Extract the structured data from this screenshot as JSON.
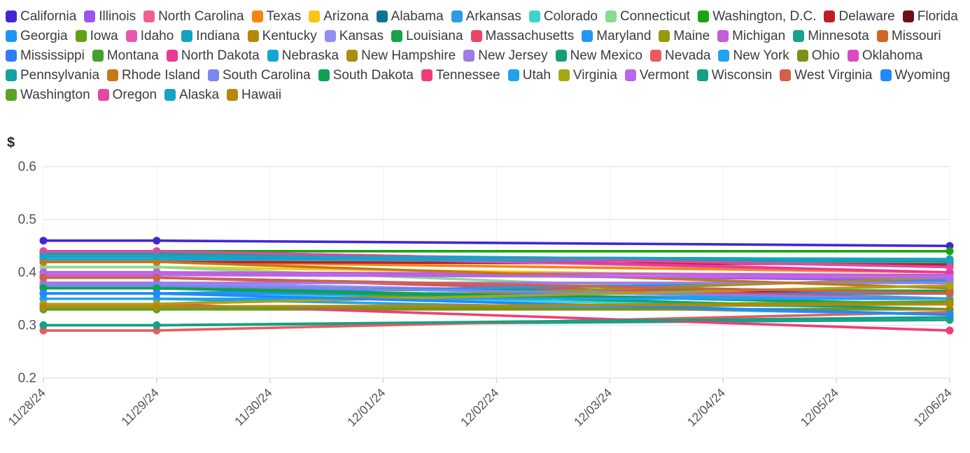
{
  "chart_data": {
    "type": "line",
    "title": "",
    "ylabel": "$",
    "xlabel": "",
    "grid": true,
    "legend_position": "top",
    "ylim": [
      0.2,
      0.6
    ],
    "y_ticks": [
      "0.6",
      "0.5",
      "0.4",
      "0.3",
      "0.2"
    ],
    "y_tick_values": [
      0.6,
      0.5,
      0.4,
      0.3,
      0.2
    ],
    "x": [
      "11/28/24",
      "11/29/24",
      "11/30/24",
      "12/01/24",
      "12/02/24",
      "12/03/24",
      "12/04/24",
      "12/05/24",
      "12/06/24"
    ],
    "point_dates": [
      "11/28/24",
      "11/29/24",
      "12/06/24"
    ],
    "point_x_indices": [
      0,
      1,
      8
    ],
    "series": [
      {
        "name": "California",
        "color": "#4226d6",
        "values": [
          0.46,
          0.46,
          0.45
        ]
      },
      {
        "name": "Illinois",
        "color": "#9a56e8",
        "values": [
          0.4,
          0.4,
          0.385
        ]
      },
      {
        "name": "North Carolina",
        "color": "#f4608c",
        "values": [
          0.38,
          0.38,
          0.35
        ]
      },
      {
        "name": "Texas",
        "color": "#f98312",
        "values": [
          0.42,
          0.42,
          0.4
        ]
      },
      {
        "name": "Arizona",
        "color": "#f8c617",
        "values": [
          0.41,
          0.41,
          0.39
        ]
      },
      {
        "name": "Alabama",
        "color": "#0e7490",
        "values": [
          0.43,
          0.43,
          0.42
        ]
      },
      {
        "name": "Arkansas",
        "color": "#2e9be5",
        "values": [
          0.36,
          0.36,
          0.35
        ]
      },
      {
        "name": "Colorado",
        "color": "#3ed3cf",
        "values": [
          0.36,
          0.36,
          0.33
        ]
      },
      {
        "name": "Connecticut",
        "color": "#8adb8f",
        "values": [
          0.41,
          0.41,
          0.35
        ]
      },
      {
        "name": "Washington, D.C.",
        "color": "#18a511",
        "values": [
          0.44,
          0.44,
          0.44
        ]
      },
      {
        "name": "Delaware",
        "color": "#bc2026",
        "values": [
          0.42,
          0.42,
          0.415
        ]
      },
      {
        "name": "Florida",
        "color": "#6d1016",
        "values": [
          0.37,
          0.37,
          0.36
        ]
      },
      {
        "name": "Georgia",
        "color": "#1e96f5",
        "values": [
          0.36,
          0.36,
          0.36
        ]
      },
      {
        "name": "Iowa",
        "color": "#63a018",
        "values": [
          0.33,
          0.33,
          0.34
        ]
      },
      {
        "name": "Idaho",
        "color": "#e557b2",
        "values": [
          0.435,
          0.435,
          0.4
        ]
      },
      {
        "name": "Indiana",
        "color": "#11a3c2",
        "values": [
          0.43,
          0.43,
          0.425
        ]
      },
      {
        "name": "Kentucky",
        "color": "#b8860e",
        "values": [
          0.34,
          0.34,
          0.375
        ]
      },
      {
        "name": "Kansas",
        "color": "#8f8ff5",
        "values": [
          0.38,
          0.38,
          0.35
        ]
      },
      {
        "name": "Louisiana",
        "color": "#16a34a",
        "values": [
          0.37,
          0.37,
          0.365
        ]
      },
      {
        "name": "Massachusetts",
        "color": "#ea4565",
        "values": [
          0.39,
          0.39,
          0.35
        ]
      },
      {
        "name": "Maryland",
        "color": "#2196f3",
        "values": [
          0.36,
          0.36,
          0.385
        ]
      },
      {
        "name": "Maine",
        "color": "#98980c",
        "values": [
          0.34,
          0.34,
          0.39
        ]
      },
      {
        "name": "Michigan",
        "color": "#c25fd9",
        "values": [
          0.4,
          0.4,
          0.395
        ]
      },
      {
        "name": "Minnesota",
        "color": "#19a38a",
        "values": [
          0.3,
          0.3,
          0.31
        ]
      },
      {
        "name": "Missouri",
        "color": "#cf6724",
        "values": [
          0.39,
          0.39,
          0.36
        ]
      },
      {
        "name": "Mississippi",
        "color": "#2d7ef7",
        "values": [
          0.375,
          0.375,
          0.35
        ]
      },
      {
        "name": "Montana",
        "color": "#44a02c",
        "values": [
          0.37,
          0.37,
          0.34
        ]
      },
      {
        "name": "North Dakota",
        "color": "#e83a96",
        "values": [
          0.44,
          0.44,
          0.4
        ]
      },
      {
        "name": "Nebraska",
        "color": "#12a5d6",
        "values": [
          0.425,
          0.425,
          0.42
        ]
      },
      {
        "name": "New Hampshire",
        "color": "#ad8d0b",
        "values": [
          0.335,
          0.335,
          0.34
        ]
      },
      {
        "name": "New Jersey",
        "color": "#a07ae8",
        "values": [
          0.38,
          0.38,
          0.38
        ]
      },
      {
        "name": "New Mexico",
        "color": "#13a173",
        "values": [
          0.37,
          0.37,
          0.33
        ]
      },
      {
        "name": "Nevada",
        "color": "#e95c5b",
        "values": [
          0.29,
          0.29,
          0.325
        ]
      },
      {
        "name": "New York",
        "color": "#22a2f2",
        "values": [
          0.35,
          0.35,
          0.32
        ]
      },
      {
        "name": "Ohio",
        "color": "#7f8f16",
        "values": [
          0.33,
          0.33,
          0.33
        ]
      },
      {
        "name": "Oklahoma",
        "color": "#d94cc0",
        "values": [
          0.44,
          0.44,
          0.41
        ]
      },
      {
        "name": "Pennsylvania",
        "color": "#12a39e",
        "values": [
          0.435,
          0.435,
          0.42
        ]
      },
      {
        "name": "Rhode Island",
        "color": "#c47816",
        "values": [
          0.42,
          0.42,
          0.37
        ]
      },
      {
        "name": "South Carolina",
        "color": "#7b86ef",
        "values": [
          0.375,
          0.375,
          0.35
        ]
      },
      {
        "name": "South Dakota",
        "color": "#0da152",
        "values": [
          0.37,
          0.37,
          0.34
        ]
      },
      {
        "name": "Tennessee",
        "color": "#f03e75",
        "values": [
          0.34,
          0.34,
          0.29
        ]
      },
      {
        "name": "Utah",
        "color": "#20a1f2",
        "values": [
          0.35,
          0.35,
          0.35
        ]
      },
      {
        "name": "Virginia",
        "color": "#a8a512",
        "values": [
          0.34,
          0.34,
          0.375
        ]
      },
      {
        "name": "Vermont",
        "color": "#b766f2",
        "values": [
          0.395,
          0.395,
          0.39
        ]
      },
      {
        "name": "Wisconsin",
        "color": "#16a085",
        "values": [
          0.3,
          0.3,
          0.315
        ]
      },
      {
        "name": "West Virginia",
        "color": "#d2604a",
        "values": [
          0.39,
          0.39,
          0.36
        ]
      },
      {
        "name": "Wyoming",
        "color": "#2188ff",
        "values": [
          0.36,
          0.36,
          0.32
        ]
      },
      {
        "name": "Washington",
        "color": "#5ba327",
        "values": [
          0.33,
          0.33,
          0.345
        ]
      },
      {
        "name": "Oregon",
        "color": "#e148a5",
        "values": [
          0.44,
          0.44,
          0.41
        ]
      },
      {
        "name": "Alaska",
        "color": "#18a2c4",
        "values": [
          0.43,
          0.43,
          0.425
        ]
      },
      {
        "name": "Hawaii",
        "color": "#b8860b",
        "values": [
          0.335,
          0.335,
          0.34
        ]
      }
    ],
    "colors": {
      "grid_line": "#e7e7ea",
      "vertical_grid_line": "#f1f1f3",
      "tick_mark": "#d4d4d8",
      "tick_label": "#52525b",
      "ylabel_color": "#27272a",
      "legend_text": "#3b3b41",
      "background": "#ffffff"
    }
  }
}
